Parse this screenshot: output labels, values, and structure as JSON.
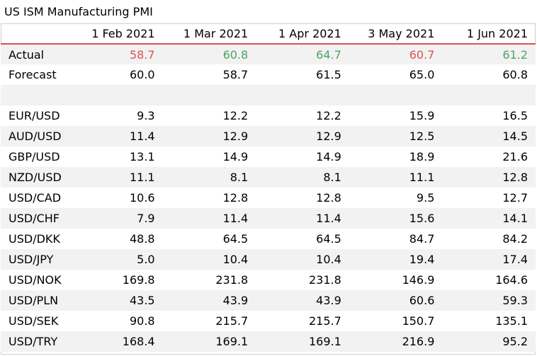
{
  "title": "US ISM Manufacturing PMI",
  "columns": [
    "1 Feb 2021",
    "1 Mar 2021",
    "1 Apr 2021",
    "3 May 2021",
    "1 Jun 2021"
  ],
  "colors": {
    "up": "#4aa464",
    "down": "#d9534f",
    "header_rule": "#d9534f",
    "band": "#f2f2f2"
  },
  "actual": {
    "label": "Actual",
    "values": [
      "58.7",
      "60.8",
      "64.7",
      "60.7",
      "61.2"
    ],
    "direction": [
      "down",
      "up",
      "up",
      "down",
      "up"
    ]
  },
  "forecast": {
    "label": "Forecast",
    "values": [
      "60.0",
      "58.7",
      "61.5",
      "65.0",
      "60.8"
    ]
  },
  "pairs": [
    {
      "label": "EUR/USD",
      "values": [
        "9.3",
        "12.2",
        "12.2",
        "15.9",
        "16.5"
      ]
    },
    {
      "label": "AUD/USD",
      "values": [
        "11.4",
        "12.9",
        "12.9",
        "12.5",
        "14.5"
      ]
    },
    {
      "label": "GBP/USD",
      "values": [
        "13.1",
        "14.9",
        "14.9",
        "18.9",
        "21.6"
      ]
    },
    {
      "label": "NZD/USD",
      "values": [
        "11.1",
        "8.1",
        "8.1",
        "11.1",
        "12.8"
      ]
    },
    {
      "label": "USD/CAD",
      "values": [
        "10.6",
        "12.8",
        "12.8",
        "9.5",
        "12.7"
      ]
    },
    {
      "label": "USD/CHF",
      "values": [
        "7.9",
        "11.4",
        "11.4",
        "15.6",
        "14.1"
      ]
    },
    {
      "label": "USD/DKK",
      "values": [
        "48.8",
        "64.5",
        "64.5",
        "84.7",
        "84.2"
      ]
    },
    {
      "label": "USD/JPY",
      "values": [
        "5.0",
        "10.4",
        "10.4",
        "19.4",
        "17.4"
      ]
    },
    {
      "label": "USD/NOK",
      "values": [
        "169.8",
        "231.8",
        "231.8",
        "146.9",
        "164.6"
      ]
    },
    {
      "label": "USD/PLN",
      "values": [
        "43.5",
        "43.9",
        "43.9",
        "60.6",
        "59.3"
      ]
    },
    {
      "label": "USD/SEK",
      "values": [
        "90.8",
        "215.7",
        "215.7",
        "150.7",
        "135.1"
      ]
    },
    {
      "label": "USD/TRY",
      "values": [
        "168.4",
        "169.1",
        "169.1",
        "216.9",
        "95.2"
      ]
    }
  ]
}
